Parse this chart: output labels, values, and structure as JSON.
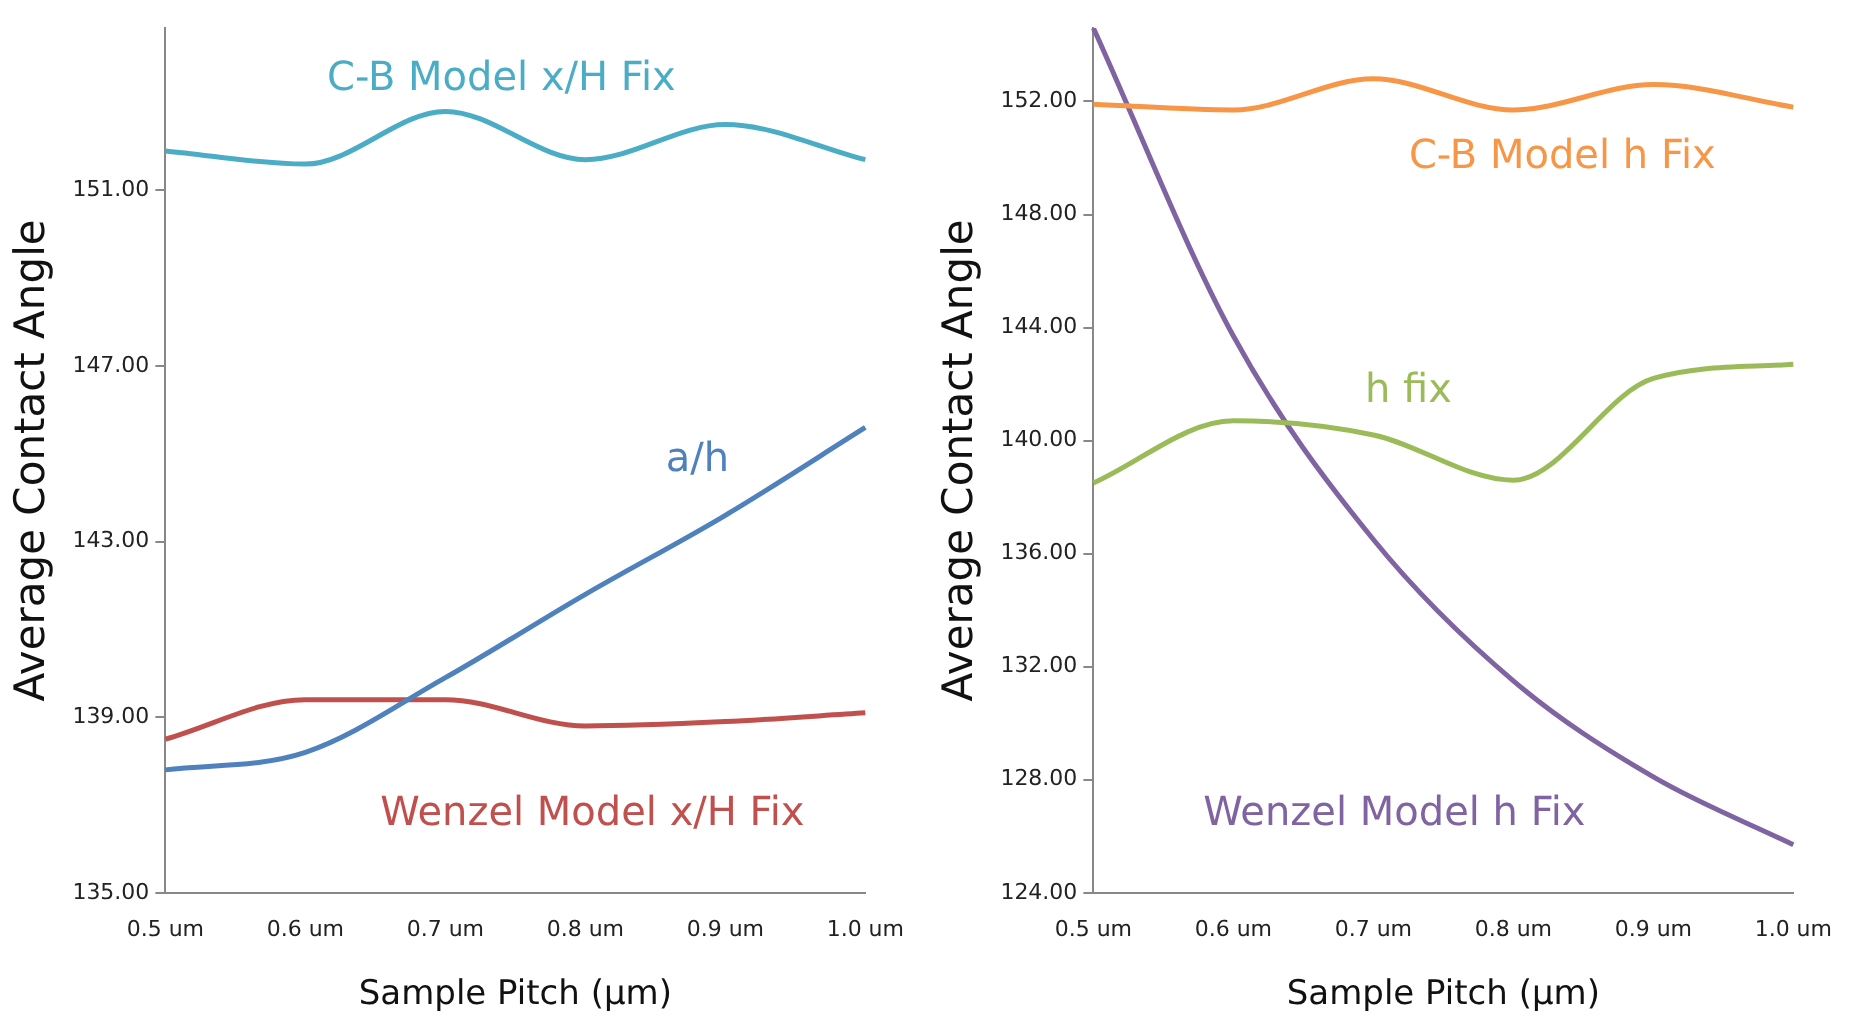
{
  "chart_data": [
    {
      "type": "line",
      "xlabel": "Sample Pitch (µm)",
      "ylabel": "Average Contact Angle",
      "categories": [
        "0.5 um",
        "0.6 um",
        "0.7 um",
        "0.8 um",
        "0.9 um",
        "1.0 um"
      ],
      "ylim": [
        135,
        154.7
      ],
      "yticks": [
        {
          "value": 135,
          "label": "135.00"
        },
        {
          "value": 139,
          "label": "139.00"
        },
        {
          "value": 143,
          "label": "143.00"
        },
        {
          "value": 147,
          "label": "147.00"
        },
        {
          "value": 151,
          "label": "151.00"
        }
      ],
      "grid": false,
      "legend": false,
      "marker": "none",
      "line_style": "solid",
      "series": [
        {
          "name": "C-B Model x/H Fix",
          "color": "#4bacc6",
          "values": [
            151.9,
            151.6,
            152.8,
            151.7,
            152.5,
            151.7
          ]
        },
        {
          "name": "a/h",
          "color": "#4f81bd",
          "values": [
            137.8,
            138.2,
            139.9,
            141.8,
            143.6,
            145.6
          ]
        },
        {
          "name": "Wenzel Model x/H Fix",
          "color": "#c0504d",
          "values": [
            138.5,
            139.4,
            139.4,
            138.8,
            138.9,
            139.1
          ]
        }
      ]
    },
    {
      "type": "line",
      "xlabel": "Sample Pitch (µm)",
      "ylabel": "Average Contact Angle",
      "categories": [
        "0.5 um",
        "0.6 um",
        "0.7 um",
        "0.8 um",
        "0.9 um",
        "1.0 um"
      ],
      "ylim": [
        124,
        154.6
      ],
      "yticks": [
        {
          "value": 124,
          "label": "124.00"
        },
        {
          "value": 128,
          "label": "128.00"
        },
        {
          "value": 132,
          "label": "132.00"
        },
        {
          "value": 136,
          "label": "136.00"
        },
        {
          "value": 140,
          "label": "140.00"
        },
        {
          "value": 144,
          "label": "144.00"
        },
        {
          "value": 148,
          "label": "148.00"
        },
        {
          "value": 152,
          "label": "152.00"
        }
      ],
      "grid": false,
      "legend": false,
      "marker": "none",
      "line_style": "solid",
      "series": [
        {
          "name": "C-B Model h Fix",
          "color": "#f79646",
          "values": [
            151.9,
            151.7,
            152.8,
            151.7,
            152.6,
            151.8
          ]
        },
        {
          "name": "h fix",
          "color": "#9bbb59",
          "values": [
            138.5,
            140.7,
            140.2,
            138.6,
            142.2,
            142.7
          ]
        },
        {
          "name": "Wenzel Model h Fix",
          "color": "#8064a2",
          "values": [
            154.6,
            143.7,
            136.5,
            131.5,
            128.1,
            125.7
          ]
        }
      ]
    }
  ]
}
